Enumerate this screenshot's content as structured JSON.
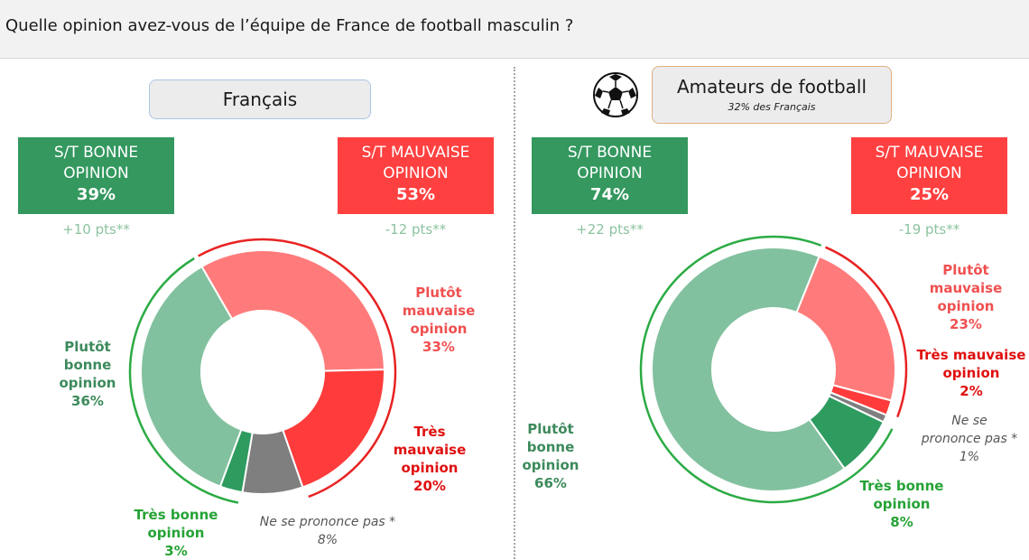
{
  "question": "Quelle opinion avez-vous de l’équipe de France de football masculin ?",
  "colors": {
    "plutot_bonne": "#82c19f",
    "tres_bonne": "#2e9b5f",
    "plutot_mauvaise": "#ff7b7b",
    "tres_mauvaise": "#ff3b3b",
    "nsp": "#7f7f7f",
    "box_good": "#34985f",
    "box_bad": "#ff4040",
    "arc_good": "#2bab44",
    "arc_bad": "#e82222"
  },
  "panels": [
    {
      "title": "Français",
      "good_box": {
        "line1": "S/T BONNE",
        "line2": "OPINION",
        "pct": "39%",
        "diff": "+10 pts**"
      },
      "bad_box": {
        "line1": "S/T MAUVAISE",
        "line2": "OPINION",
        "pct": "53%",
        "diff": "-12 pts**"
      },
      "labels": {
        "plutot_bonne": {
          "name": "Plutôt\nbonne\nopinion",
          "pct": "36%"
        },
        "tres_bonne": {
          "name": "Très bonne\nopinion",
          "pct": "3%"
        },
        "plutot_mauvaise": {
          "name": "Plutôt\nmauvaise\nopinion",
          "pct": "33%"
        },
        "tres_mauvaise": {
          "name": "Très\nmauvaise\nopinion",
          "pct": "20%"
        },
        "nsp": {
          "name": "Ne se prononce pas *",
          "pct": "8%"
        }
      }
    },
    {
      "title": "Amateurs de football",
      "subtitle": "32% des Français",
      "icon": "soccer-ball-icon",
      "good_box": {
        "line1": "S/T BONNE",
        "line2": "OPINION",
        "pct": "74%",
        "diff": "+22 pts**"
      },
      "bad_box": {
        "line1": "S/T MAUVAISE",
        "line2": "OPINION",
        "pct": "25%",
        "diff": "-19 pts**"
      },
      "labels": {
        "plutot_bonne": {
          "name": "Plutôt\nbonne\nopinion",
          "pct": "66%"
        },
        "tres_bonne": {
          "name": "Très bonne\nopinion",
          "pct": "8%"
        },
        "plutot_mauvaise": {
          "name": "Plutôt\nmauvaise\nopinion",
          "pct": "23%"
        },
        "tres_mauvaise": {
          "name": "Très mauvaise\nopinion",
          "pct": "2%"
        },
        "nsp": {
          "name": "Ne se\nprononce pas *",
          "pct": "1%"
        }
      }
    }
  ],
  "chart_data": [
    {
      "type": "pie",
      "title": "Français",
      "categories": [
        "Plutôt mauvaise opinion",
        "Très mauvaise opinion",
        "Ne se prononce pas",
        "Très bonne opinion",
        "Plutôt bonne opinion"
      ],
      "values": [
        33,
        20,
        8,
        3,
        36
      ],
      "summary": {
        "S/T BONNE OPINION": 39,
        "S/T MAUVAISE OPINION": 53
      }
    },
    {
      "type": "pie",
      "title": "Amateurs de football",
      "categories": [
        "Plutôt mauvaise opinion",
        "Très mauvaise opinion",
        "Ne se prononce pas",
        "Très bonne opinion",
        "Plutôt bonne opinion"
      ],
      "values": [
        23,
        2,
        1,
        8,
        66
      ],
      "summary": {
        "S/T BONNE OPINION": 74,
        "S/T MAUVAISE OPINION": 25
      }
    }
  ]
}
